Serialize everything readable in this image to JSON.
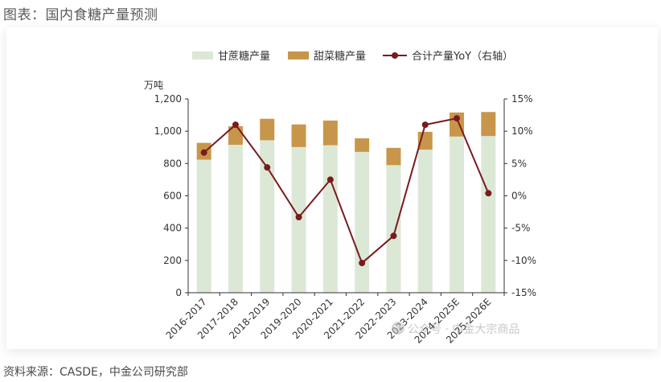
{
  "caption": {
    "title": "图表：国内食糖产量预测",
    "source": "资料来源：CASDE，中金公司研究部"
  },
  "watermark": "公众号 · 中金大宗商品",
  "colors": {
    "cane": "#dce8d6",
    "beet": "#c8964a",
    "yoy": "#7a1a1e",
    "axis": "#333333",
    "text": "#333333"
  },
  "chart_data": {
    "type": "bar",
    "stacked": true,
    "title": "",
    "ylabel": "万吨",
    "ylabel_right": "",
    "categories": [
      "2016-2017",
      "2017-2018",
      "2018-2019",
      "2019-2020",
      "2020-2021",
      "2021-2022",
      "2022-2023",
      "2023-2024",
      "2024-2025E",
      "2025-2026E"
    ],
    "series": [
      {
        "name": "甘蔗糖产量",
        "kind": "bar",
        "axis": "left",
        "values": [
          824,
          916,
          944,
          902,
          913,
          872,
          790,
          886,
          967,
          970
        ]
      },
      {
        "name": "甜菜糖产量",
        "kind": "bar",
        "axis": "left",
        "values": [
          104,
          115,
          133,
          140,
          153,
          84,
          107,
          110,
          149,
          149
        ]
      },
      {
        "name": "合计产量YoY（右轴）",
        "kind": "line",
        "axis": "right",
        "values": [
          6.7,
          11.0,
          4.4,
          -3.3,
          2.5,
          -10.4,
          -6.2,
          11.0,
          12.0,
          0.4
        ]
      }
    ],
    "ylim": [
      0,
      1200
    ],
    "yticks": [
      0,
      200,
      400,
      600,
      800,
      1000,
      1200
    ],
    "ytick_labels": [
      "0",
      "200",
      "400",
      "600",
      "800",
      "1,000",
      "1,200"
    ],
    "ylim_right": [
      -15,
      15
    ],
    "yticks_right": [
      -15,
      -10,
      -5,
      0,
      5,
      10,
      15
    ],
    "ytick_labels_right": [
      "-15%",
      "-10%",
      "-5%",
      "0%",
      "5%",
      "10%",
      "15%"
    ],
    "legend": {
      "position": "top",
      "entries": [
        "甘蔗糖产量",
        "甜菜糖产量",
        "合计产量YoY（右轴）"
      ]
    },
    "grid": false
  }
}
